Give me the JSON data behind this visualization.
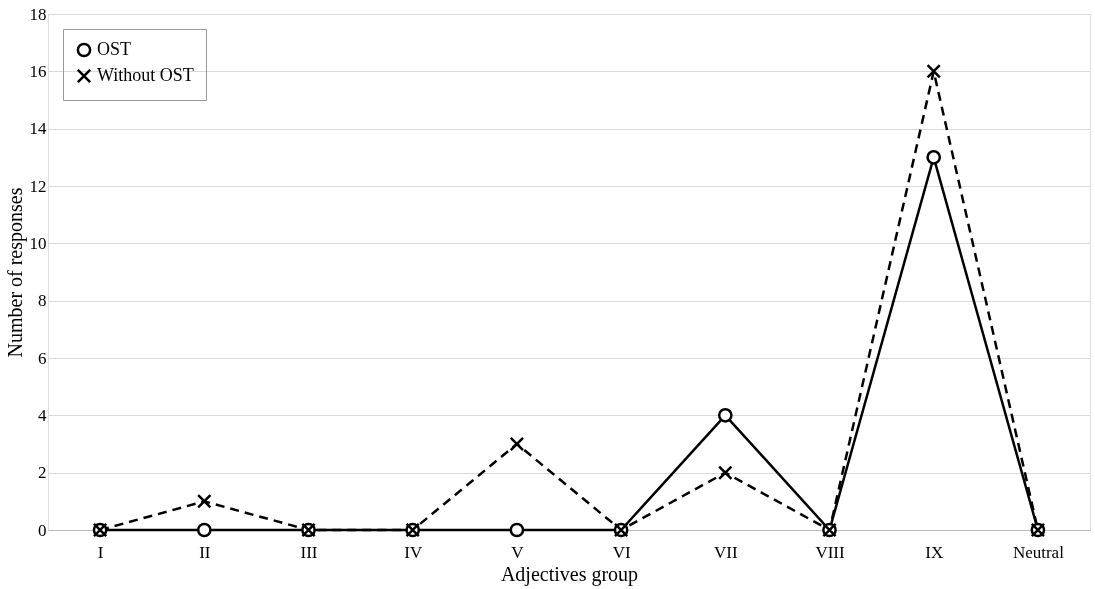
{
  "chart_data": {
    "type": "line",
    "xlabel": "Adjectives group",
    "ylabel": "Number of responses",
    "categories": [
      "I",
      "II",
      "III",
      "IV",
      "V",
      "VI",
      "VII",
      "VIII",
      "IX",
      "Neutral"
    ],
    "series": [
      {
        "name": "OST",
        "color": "#000000",
        "marker": "circle",
        "line_style": "solid",
        "values": [
          0,
          0,
          0,
          0,
          0,
          0,
          4,
          0,
          13,
          0
        ]
      },
      {
        "name": "Without OST",
        "color": "#000000",
        "marker": "cross",
        "line_style": "dashed",
        "values": [
          0,
          1,
          0,
          0,
          3,
          0,
          2,
          0,
          16,
          0
        ]
      }
    ],
    "ylim": [
      0,
      18
    ],
    "yticks": [
      0,
      2,
      4,
      6,
      8,
      10,
      12,
      14,
      16,
      18
    ],
    "grid": "y",
    "legend": "top left"
  }
}
